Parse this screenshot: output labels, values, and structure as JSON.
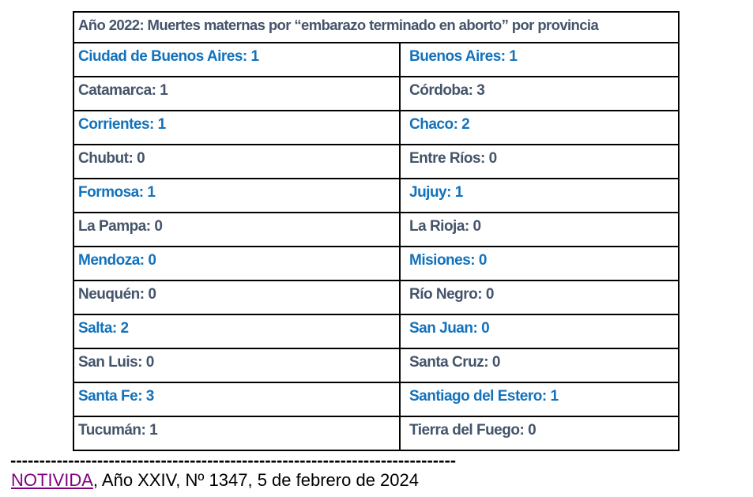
{
  "colors": {
    "blue": "#1272BC",
    "dark": "#44546A",
    "purple": "#800080",
    "border": "#000000"
  },
  "table": {
    "title": "Año 2022: Muertes maternas por “embarazo terminado en aborto” por provincia",
    "rows": [
      {
        "left": "Ciudad de Buenos Aires: 1",
        "right": "Buenos Aires: 1",
        "color": "blue"
      },
      {
        "left": "Catamarca: 1",
        "right": "Córdoba: 3",
        "color": "dark"
      },
      {
        "left": "Corrientes: 1",
        "right": "Chaco: 2",
        "color": "blue"
      },
      {
        "left": "Chubut: 0",
        "right": "Entre Ríos: 0",
        "color": "dark"
      },
      {
        "left": "Formosa: 1",
        "right": "Jujuy: 1",
        "color": "blue"
      },
      {
        "left": "La Pampa: 0",
        "right": "La Rioja: 0",
        "color": "dark"
      },
      {
        "left": "Mendoza: 0",
        "right": "Misiones: 0",
        "color": "blue"
      },
      {
        "left": "Neuquén: 0",
        "right": "Río Negro: 0",
        "color": "dark"
      },
      {
        "left": "Salta: 2",
        "right": "San Juan: 0",
        "color": "blue"
      },
      {
        "left": "San Luis: 0",
        "right": "Santa Cruz: 0",
        "color": "dark"
      },
      {
        "left": "Santa Fe: 3",
        "right": "Santiago del Estero: 1",
        "color": "blue"
      },
      {
        "left": "Tucumán: 1",
        "right": "Tierra del Fuego: 0",
        "color": "dark"
      }
    ]
  },
  "footer": {
    "separator": "-----------------------------------------------------------------------------",
    "link_text": "NOTIVIDA",
    "citation_rest": ", Año XXIV, Nº 1347, 5 de febrero de 2024"
  }
}
